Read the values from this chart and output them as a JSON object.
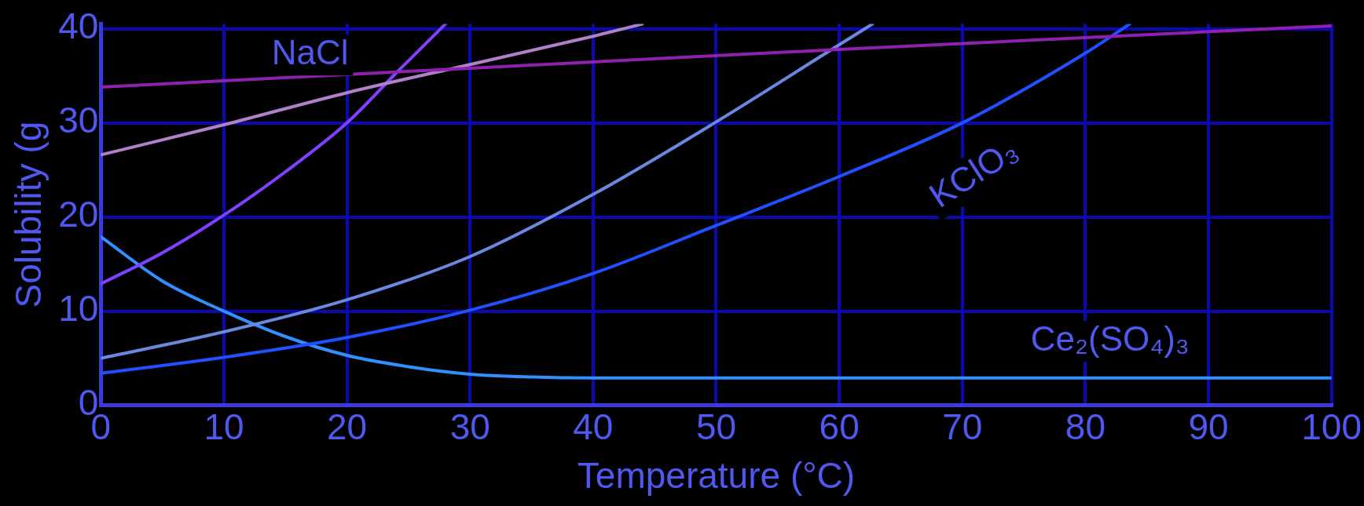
{
  "chart_data": {
    "type": "line",
    "xlabel": "Temperature (°C)",
    "ylabel": "Solubility (g",
    "xlim": [
      0,
      100
    ],
    "xticks": [
      0,
      10,
      20,
      30,
      40,
      50,
      60,
      70,
      80,
      90,
      100
    ],
    "ylim": [
      0,
      40.5
    ],
    "yticks": [
      0,
      10,
      20,
      30,
      40
    ],
    "grid": true,
    "legend": false,
    "marker": "none",
    "line_style": "solid",
    "series": [
      {
        "name": "NaCl",
        "color": "#9020b0",
        "x": [
          0,
          30,
          60,
          100
        ],
        "values": [
          33.8,
          35.8,
          37.8,
          40.3
        ]
      },
      {
        "color": "#b080c8",
        "x": [
          0,
          10,
          20,
          30,
          40,
          44
        ],
        "values": [
          26.6,
          29.8,
          33.2,
          36.2,
          39.2,
          40.5
        ]
      },
      {
        "color": "#8040ff",
        "x": [
          0,
          5,
          10,
          15,
          20,
          24,
          28
        ],
        "values": [
          12.9,
          16.2,
          20.2,
          24.8,
          30.0,
          35.3,
          40.5
        ]
      },
      {
        "color": "#6a88e0",
        "x": [
          0,
          10,
          20,
          30,
          40,
          50,
          60,
          62.7
        ],
        "values": [
          5.0,
          7.8,
          11.2,
          15.8,
          22.4,
          30.1,
          38.3,
          40.5
        ]
      },
      {
        "name": "KClO₃",
        "color": "#2050ff",
        "x": [
          0,
          10,
          20,
          30,
          40,
          50,
          60,
          70,
          80,
          83.6
        ],
        "values": [
          3.4,
          5.1,
          7.2,
          10.1,
          14.0,
          19.1,
          24.3,
          30.0,
          37.4,
          40.5
        ]
      },
      {
        "name": "Ce₂(SO₄)₃",
        "color": "#3090ff",
        "x": [
          0,
          5,
          10,
          15,
          20,
          25,
          30,
          35,
          40,
          100
        ],
        "values": [
          17.9,
          13.2,
          10.0,
          7.3,
          5.3,
          4.1,
          3.3,
          3.0,
          2.9,
          2.9
        ]
      }
    ]
  }
}
